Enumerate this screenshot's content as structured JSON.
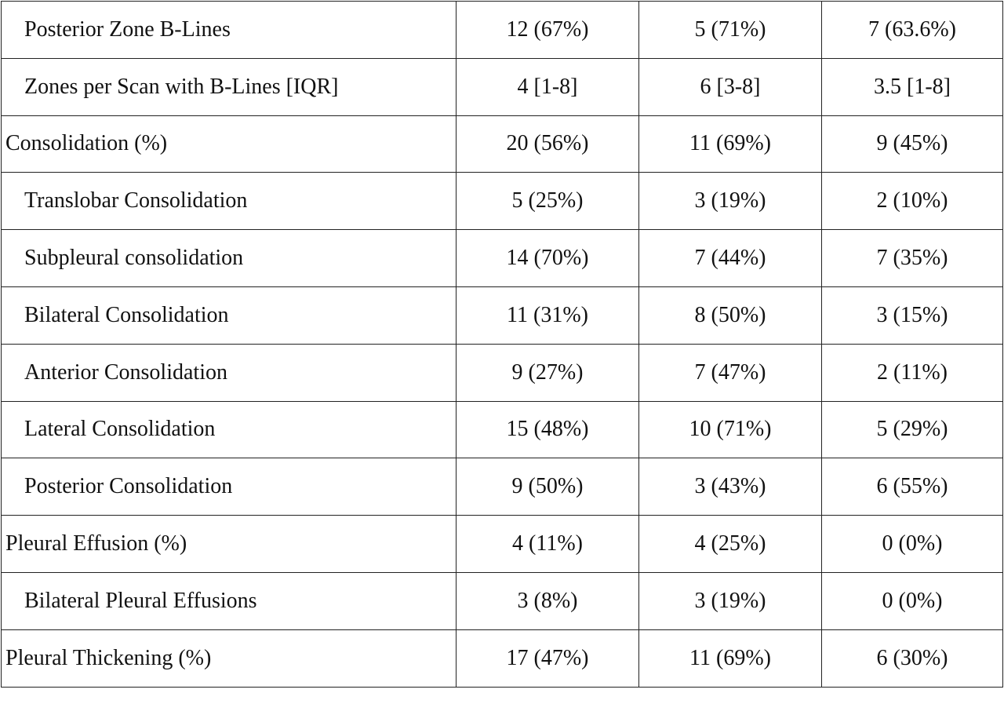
{
  "table": {
    "rows": [
      [
        "Posterior Zone B-Lines",
        "12 (67%)",
        "5 (71%)",
        "7 (63.6%)"
      ],
      [
        "Zones per Scan with B-Lines [IQR]",
        "4 [1-8]",
        "6 [3-8]",
        "3.5 [1-8]"
      ],
      [
        "Consolidation (%)",
        "20 (56%)",
        "11 (69%)",
        "9 (45%)"
      ],
      [
        "Translobar Consolidation",
        "5 (25%)",
        "3 (19%)",
        "2 (10%)"
      ],
      [
        "Subpleural consolidation",
        "14 (70%)",
        "7 (44%)",
        "7 (35%)"
      ],
      [
        "Bilateral Consolidation",
        "11 (31%)",
        "8 (50%)",
        "3 (15%)"
      ],
      [
        "Anterior Consolidation",
        "9 (27%)",
        "7 (47%)",
        "2 (11%)"
      ],
      [
        "Lateral Consolidation",
        "15 (48%)",
        "10 (71%)",
        "5 (29%)"
      ],
      [
        "Posterior Consolidation",
        "9 (50%)",
        "3 (43%)",
        "6 (55%)"
      ],
      [
        "Pleural Effusion (%)",
        "4 (11%)",
        "4 (25%)",
        "0 (0%)"
      ],
      [
        "Bilateral Pleural Effusions",
        "3 (8%)",
        "3 (19%)",
        "0 (0%)"
      ],
      [
        "Pleural Thickening (%)",
        "17 (47%)",
        "11 (69%)",
        "6 (30%)"
      ]
    ]
  }
}
